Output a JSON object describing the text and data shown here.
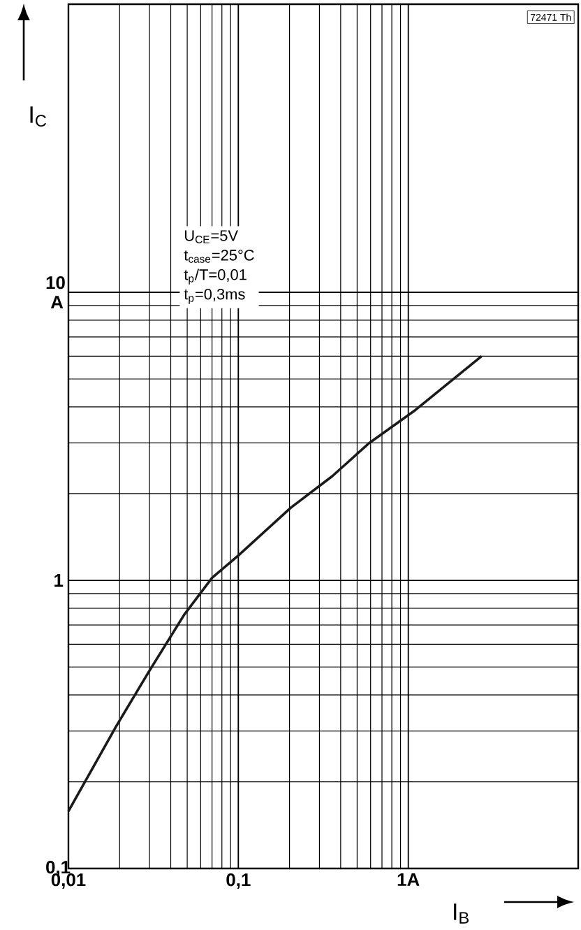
{
  "chart_data": {
    "type": "line",
    "log": "xy",
    "xlabel": "I$_{B}$",
    "ylabel": "I$_{C}$",
    "xlim": [
      0.01,
      10
    ],
    "ylim": [
      0.1,
      100
    ],
    "xticks": [
      {
        "value": 0.01,
        "label": "0,01"
      },
      {
        "value": 0.1,
        "label": "0,1"
      },
      {
        "value": 1,
        "label": "1A"
      }
    ],
    "yticks": [
      {
        "value": 0.1,
        "label": "0,1"
      },
      {
        "value": 1,
        "label": "1"
      },
      {
        "value": 10,
        "label": "10 A"
      }
    ],
    "grid": true,
    "series": [
      {
        "color": "#1a1a1a",
        "x": [
          0.01,
          0.019,
          0.0296,
          0.048,
          0.07,
          0.1,
          0.204,
          0.357,
          0.59,
          1.1,
          2.7
        ],
        "values": [
          0.158,
          0.31,
          0.48,
          0.76,
          1.02,
          1.22,
          1.79,
          2.3,
          3.0,
          3.9,
          6.0
        ]
      }
    ],
    "annotations": [
      "U$_{CE}$=5V",
      "t$_{case}$=25°C",
      "t$_{p}$/T=0,01",
      "t$_{p}$=0,3ms",
      "72471 Th"
    ]
  }
}
